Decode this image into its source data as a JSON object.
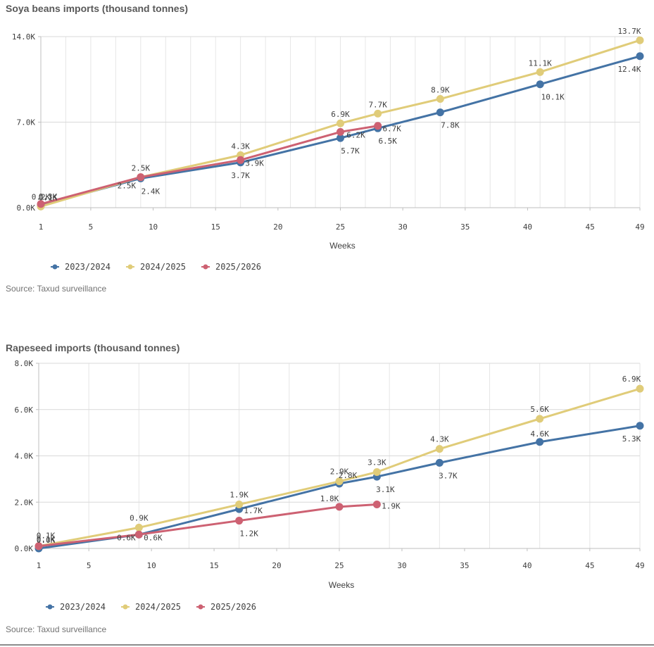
{
  "chart_data": [
    {
      "type": "line",
      "title": "Soya beans imports (thousand tonnes)",
      "xlabel": "Weeks",
      "ylabel": "",
      "source": "Source: Taxud surveillance",
      "xlim": [
        1,
        49
      ],
      "ylim": [
        0,
        14
      ],
      "x_ticks": [
        1,
        5,
        10,
        15,
        20,
        25,
        30,
        35,
        40,
        45,
        49
      ],
      "y_ticks": [
        {
          "value": 0,
          "label": "0.0K"
        },
        {
          "value": 7,
          "label": "7.0K"
        },
        {
          "value": 14,
          "label": "14.0K"
        }
      ],
      "x_grid": [
        1,
        3,
        5,
        7,
        9,
        11,
        13,
        15,
        17,
        19,
        21,
        23,
        25,
        27,
        29,
        31,
        33,
        35,
        37,
        39,
        41,
        43,
        45,
        47,
        49
      ],
      "y_grid": [
        0,
        7,
        14
      ],
      "legend": "bottom-left",
      "series": [
        {
          "name": "2023/2024",
          "color": "#4473a5",
          "points": [
            {
              "x": 1,
              "y": 0.2,
              "label": "0.2K"
            },
            {
              "x": 9,
              "y": 2.4,
              "label": "2.4K"
            },
            {
              "x": 17,
              "y": 3.7,
              "label": "3.7K"
            },
            {
              "x": 25,
              "y": 5.7,
              "label": "5.7K"
            },
            {
              "x": 28,
              "y": 6.5,
              "label": "6.5K"
            },
            {
              "x": 33,
              "y": 7.8,
              "label": "7.8K"
            },
            {
              "x": 41,
              "y": 10.1,
              "label": "10.1K"
            },
            {
              "x": 49,
              "y": 12.4,
              "label": "12.4K"
            }
          ]
        },
        {
          "name": "2024/2025",
          "color": "#e0cc79",
          "points": [
            {
              "x": 1,
              "y": 0.1,
              "label": "0.1K"
            },
            {
              "x": 9,
              "y": 2.5,
              "label": "2.5K"
            },
            {
              "x": 17,
              "y": 4.3,
              "label": "4.3K"
            },
            {
              "x": 25,
              "y": 6.9,
              "label": "6.9K"
            },
            {
              "x": 28,
              "y": 7.7,
              "label": "7.7K"
            },
            {
              "x": 33,
              "y": 8.9,
              "label": "8.9K"
            },
            {
              "x": 41,
              "y": 11.1,
              "label": "11.1K"
            },
            {
              "x": 49,
              "y": 13.7,
              "label": "13.7K"
            }
          ]
        },
        {
          "name": "2025/2026",
          "color": "#cd6172",
          "points": [
            {
              "x": 1,
              "y": 0.3,
              "label": "0.3K"
            },
            {
              "x": 9,
              "y": 2.5,
              "label": "2.5K"
            },
            {
              "x": 17,
              "y": 3.9,
              "label": "3.9K"
            },
            {
              "x": 25,
              "y": 6.2,
              "label": "6.2K"
            },
            {
              "x": 28,
              "y": 6.7,
              "label": "6.7K"
            }
          ]
        }
      ]
    },
    {
      "type": "line",
      "title": "Rapeseed imports (thousand tonnes)",
      "xlabel": "Weeks",
      "ylabel": "",
      "source": "Source: Taxud surveillance",
      "xlim": [
        1,
        49
      ],
      "ylim": [
        0,
        8
      ],
      "x_ticks": [
        1,
        5,
        10,
        15,
        20,
        25,
        30,
        35,
        40,
        45,
        49
      ],
      "y_ticks": [
        {
          "value": 0,
          "label": "0.0K"
        },
        {
          "value": 2,
          "label": "2.0K"
        },
        {
          "value": 4,
          "label": "4.0K"
        },
        {
          "value": 6,
          "label": "6.0K"
        },
        {
          "value": 8,
          "label": "8.0K"
        }
      ],
      "x_grid": [
        1,
        5,
        9,
        13,
        17,
        21,
        25,
        29,
        33,
        37,
        41,
        45,
        49
      ],
      "y_grid": [
        0,
        2,
        4,
        6,
        8
      ],
      "legend": "bottom-left",
      "series": [
        {
          "name": "2023/2024",
          "color": "#4473a5",
          "points": [
            {
              "x": 1,
              "y": 0.0,
              "label": "0.0K"
            },
            {
              "x": 9,
              "y": 0.6,
              "label": "0.6K"
            },
            {
              "x": 17,
              "y": 1.7,
              "label": "1.7K"
            },
            {
              "x": 25,
              "y": 2.8,
              "label": "2.8K"
            },
            {
              "x": 28,
              "y": 3.1,
              "label": "3.1K"
            },
            {
              "x": 33,
              "y": 3.7,
              "label": "3.7K"
            },
            {
              "x": 41,
              "y": 4.6,
              "label": "4.6K"
            },
            {
              "x": 49,
              "y": 5.3,
              "label": "5.3K"
            }
          ]
        },
        {
          "name": "2024/2025",
          "color": "#e0cc79",
          "points": [
            {
              "x": 1,
              "y": 0.1,
              "label": "0.1K"
            },
            {
              "x": 9,
              "y": 0.9,
              "label": "0.9K"
            },
            {
              "x": 17,
              "y": 1.9,
              "label": "1.9K"
            },
            {
              "x": 25,
              "y": 2.9,
              "label": "2.9K"
            },
            {
              "x": 28,
              "y": 3.3,
              "label": "3.3K"
            },
            {
              "x": 33,
              "y": 4.3,
              "label": "4.3K"
            },
            {
              "x": 41,
              "y": 5.6,
              "label": "5.6K"
            },
            {
              "x": 49,
              "y": 6.9,
              "label": "6.9K"
            }
          ]
        },
        {
          "name": "2025/2026",
          "color": "#cd6172",
          "points": [
            {
              "x": 1,
              "y": 0.1,
              "label": "0.1K"
            },
            {
              "x": 9,
              "y": 0.6,
              "label": "0.6K"
            },
            {
              "x": 17,
              "y": 1.2,
              "label": "1.2K"
            },
            {
              "x": 25,
              "y": 1.8,
              "label": "1.8K"
            },
            {
              "x": 28,
              "y": 1.9,
              "label": "1.9K"
            }
          ]
        }
      ]
    }
  ]
}
